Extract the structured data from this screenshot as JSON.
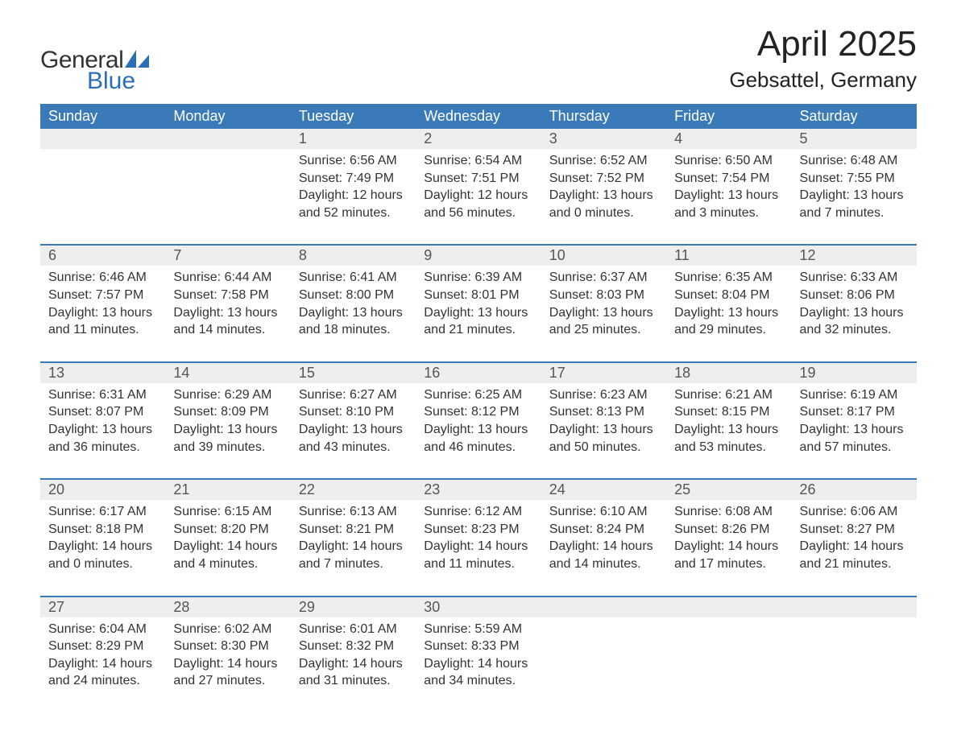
{
  "brand": {
    "word1": "General",
    "word2": "Blue",
    "accent_color": "#2a6fb5"
  },
  "title": "April 2025",
  "location": "Gebsattel, Germany",
  "colors": {
    "header_bg": "#3a7ab8",
    "header_text": "#ffffff",
    "daynum_bg": "#eeeeee",
    "daynum_text": "#555555",
    "body_text": "#333333",
    "rule": "#3a7ab8",
    "page_bg": "#ffffff"
  },
  "fonts": {
    "title_pt": 44,
    "location_pt": 26,
    "dow_pt": 18,
    "daynum_pt": 18,
    "body_pt": 16
  },
  "days_of_week": [
    "Sunday",
    "Monday",
    "Tuesday",
    "Wednesday",
    "Thursday",
    "Friday",
    "Saturday"
  ],
  "weeks": [
    [
      null,
      null,
      {
        "n": "1",
        "sunrise": "6:56 AM",
        "sunset": "7:49 PM",
        "dl_h": 12,
        "dl_m": 52
      },
      {
        "n": "2",
        "sunrise": "6:54 AM",
        "sunset": "7:51 PM",
        "dl_h": 12,
        "dl_m": 56
      },
      {
        "n": "3",
        "sunrise": "6:52 AM",
        "sunset": "7:52 PM",
        "dl_h": 13,
        "dl_m": 0
      },
      {
        "n": "4",
        "sunrise": "6:50 AM",
        "sunset": "7:54 PM",
        "dl_h": 13,
        "dl_m": 3
      },
      {
        "n": "5",
        "sunrise": "6:48 AM",
        "sunset": "7:55 PM",
        "dl_h": 13,
        "dl_m": 7
      }
    ],
    [
      {
        "n": "6",
        "sunrise": "6:46 AM",
        "sunset": "7:57 PM",
        "dl_h": 13,
        "dl_m": 11
      },
      {
        "n": "7",
        "sunrise": "6:44 AM",
        "sunset": "7:58 PM",
        "dl_h": 13,
        "dl_m": 14
      },
      {
        "n": "8",
        "sunrise": "6:41 AM",
        "sunset": "8:00 PM",
        "dl_h": 13,
        "dl_m": 18
      },
      {
        "n": "9",
        "sunrise": "6:39 AM",
        "sunset": "8:01 PM",
        "dl_h": 13,
        "dl_m": 21
      },
      {
        "n": "10",
        "sunrise": "6:37 AM",
        "sunset": "8:03 PM",
        "dl_h": 13,
        "dl_m": 25
      },
      {
        "n": "11",
        "sunrise": "6:35 AM",
        "sunset": "8:04 PM",
        "dl_h": 13,
        "dl_m": 29
      },
      {
        "n": "12",
        "sunrise": "6:33 AM",
        "sunset": "8:06 PM",
        "dl_h": 13,
        "dl_m": 32
      }
    ],
    [
      {
        "n": "13",
        "sunrise": "6:31 AM",
        "sunset": "8:07 PM",
        "dl_h": 13,
        "dl_m": 36
      },
      {
        "n": "14",
        "sunrise": "6:29 AM",
        "sunset": "8:09 PM",
        "dl_h": 13,
        "dl_m": 39
      },
      {
        "n": "15",
        "sunrise": "6:27 AM",
        "sunset": "8:10 PM",
        "dl_h": 13,
        "dl_m": 43
      },
      {
        "n": "16",
        "sunrise": "6:25 AM",
        "sunset": "8:12 PM",
        "dl_h": 13,
        "dl_m": 46
      },
      {
        "n": "17",
        "sunrise": "6:23 AM",
        "sunset": "8:13 PM",
        "dl_h": 13,
        "dl_m": 50
      },
      {
        "n": "18",
        "sunrise": "6:21 AM",
        "sunset": "8:15 PM",
        "dl_h": 13,
        "dl_m": 53
      },
      {
        "n": "19",
        "sunrise": "6:19 AM",
        "sunset": "8:17 PM",
        "dl_h": 13,
        "dl_m": 57
      }
    ],
    [
      {
        "n": "20",
        "sunrise": "6:17 AM",
        "sunset": "8:18 PM",
        "dl_h": 14,
        "dl_m": 0
      },
      {
        "n": "21",
        "sunrise": "6:15 AM",
        "sunset": "8:20 PM",
        "dl_h": 14,
        "dl_m": 4
      },
      {
        "n": "22",
        "sunrise": "6:13 AM",
        "sunset": "8:21 PM",
        "dl_h": 14,
        "dl_m": 7
      },
      {
        "n": "23",
        "sunrise": "6:12 AM",
        "sunset": "8:23 PM",
        "dl_h": 14,
        "dl_m": 11
      },
      {
        "n": "24",
        "sunrise": "6:10 AM",
        "sunset": "8:24 PM",
        "dl_h": 14,
        "dl_m": 14
      },
      {
        "n": "25",
        "sunrise": "6:08 AM",
        "sunset": "8:26 PM",
        "dl_h": 14,
        "dl_m": 17
      },
      {
        "n": "26",
        "sunrise": "6:06 AM",
        "sunset": "8:27 PM",
        "dl_h": 14,
        "dl_m": 21
      }
    ],
    [
      {
        "n": "27",
        "sunrise": "6:04 AM",
        "sunset": "8:29 PM",
        "dl_h": 14,
        "dl_m": 24
      },
      {
        "n": "28",
        "sunrise": "6:02 AM",
        "sunset": "8:30 PM",
        "dl_h": 14,
        "dl_m": 27
      },
      {
        "n": "29",
        "sunrise": "6:01 AM",
        "sunset": "8:32 PM",
        "dl_h": 14,
        "dl_m": 31
      },
      {
        "n": "30",
        "sunrise": "5:59 AM",
        "sunset": "8:33 PM",
        "dl_h": 14,
        "dl_m": 34
      },
      null,
      null,
      null
    ]
  ],
  "labels": {
    "sunrise": "Sunrise: ",
    "sunset": "Sunset: ",
    "daylight_prefix": "Daylight: ",
    "hours_word": " hours and ",
    "minutes_word": " minutes."
  }
}
